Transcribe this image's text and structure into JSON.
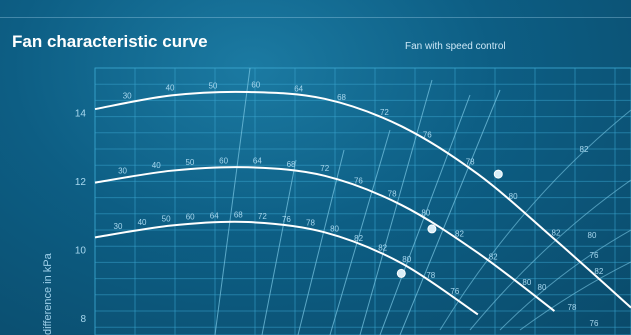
{
  "page": {
    "title": "Fan characteristic curve",
    "subtitle": "Fan with speed control"
  },
  "colors": {
    "background": "#0d5e84",
    "grid": "#3aa6cf",
    "curve": "#ffffff",
    "system_line": "#7cc9e6",
    "label": "#a8d8ef"
  },
  "chart_data": {
    "type": "line",
    "title": "Fan characteristic curve",
    "subtitle": "Fan with speed control",
    "ylabel": "difference in kPa",
    "ylim": [
      7.5,
      15.3
    ],
    "y_ticks": [
      8,
      10,
      12,
      14
    ],
    "grid": true,
    "series": [
      {
        "name": "",
        "x": [
          0,
          0.15,
          0.3,
          0.45,
          0.6,
          0.75,
          0.9,
          1.05
        ],
        "y": [
          14.1,
          14.5,
          14.6,
          14.4,
          13.6,
          12.2,
          10.3,
          8.3
        ],
        "operating_point": [
          0.79,
          12.2
        ]
      },
      {
        "name": "",
        "x": [
          0,
          0.15,
          0.3,
          0.45,
          0.6,
          0.75,
          0.9
        ],
        "y": [
          11.95,
          12.3,
          12.4,
          12.15,
          11.3,
          9.9,
          8.2
        ],
        "operating_point": [
          0.66,
          10.6
        ]
      },
      {
        "name": "",
        "x": [
          0,
          0.15,
          0.3,
          0.45,
          0.6,
          0.75
        ],
        "y": [
          10.35,
          10.7,
          10.8,
          10.5,
          9.6,
          8.1
        ],
        "operating_point": [
          0.6,
          9.3
        ]
      }
    ],
    "curve_annotations": [
      [
        "30",
        "40",
        "50",
        "60",
        "64",
        "68",
        "72",
        "76",
        "78",
        "80",
        "82",
        "82"
      ],
      [
        "30",
        "40",
        "50",
        "60",
        "64",
        "68",
        "72",
        "76",
        "78",
        "80",
        "82",
        "82",
        "80"
      ],
      [
        "30",
        "40",
        "50",
        "60",
        "64",
        "68",
        "72",
        "76",
        "78",
        "80",
        "82",
        "82",
        "80",
        "78",
        "76"
      ]
    ],
    "edge_annotations": [
      "82",
      "80",
      "76",
      "80",
      "78",
      "76"
    ]
  }
}
